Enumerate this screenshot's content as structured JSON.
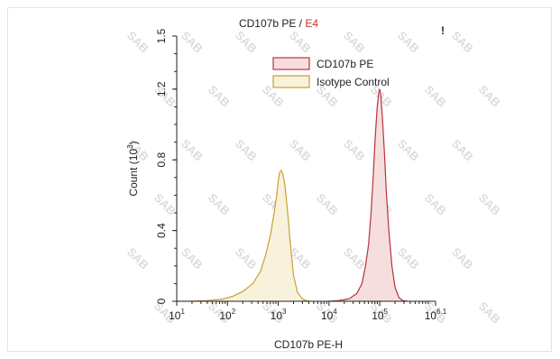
{
  "chart_data": {
    "type": "area",
    "title_main": "CD107b PE / ",
    "title_accent": "E4",
    "title_accent_color": "#c0392b",
    "corner_mark": "!",
    "xlabel": "CD107b PE-H",
    "ylabel_main": "Count (10",
    "ylabel_exp": "3",
    "ylabel_end": ")",
    "x_scale": "log10",
    "xlim": [
      1,
      6.1
    ],
    "ylim": [
      0,
      1.5
    ],
    "x_ticks": [
      {
        "base": "10",
        "exp": "1",
        "value": 1
      },
      {
        "base": "10",
        "exp": "2",
        "value": 2
      },
      {
        "base": "10",
        "exp": "3",
        "value": 3
      },
      {
        "base": "10",
        "exp": "4",
        "value": 4
      },
      {
        "base": "10",
        "exp": "5",
        "value": 5
      },
      {
        "base": "10",
        "exp": "6.1",
        "value": 6.1
      }
    ],
    "y_ticks": [
      {
        "label": "0",
        "value": 0
      },
      {
        "label": "0.4",
        "value": 0.4
      },
      {
        "label": "0.8",
        "value": 0.8
      },
      {
        "label": "1.2",
        "value": 1.2
      },
      {
        "label": "1.5",
        "value": 1.5
      }
    ],
    "legend_position": "top-right",
    "watermark": "SAB",
    "series": [
      {
        "name": "CD107b PE",
        "stroke": "#b5353f",
        "fill": "#f6dede",
        "points": [
          [
            4.0,
            0
          ],
          [
            4.2,
            0.004
          ],
          [
            4.4,
            0.015
          ],
          [
            4.55,
            0.045
          ],
          [
            4.65,
            0.1
          ],
          [
            4.72,
            0.2
          ],
          [
            4.78,
            0.32
          ],
          [
            4.83,
            0.5
          ],
          [
            4.87,
            0.7
          ],
          [
            4.91,
            0.92
          ],
          [
            4.95,
            1.1
          ],
          [
            4.98,
            1.18
          ],
          [
            5.0,
            1.2
          ],
          [
            5.02,
            1.17
          ],
          [
            5.05,
            1.05
          ],
          [
            5.09,
            0.85
          ],
          [
            5.13,
            0.62
          ],
          [
            5.18,
            0.4
          ],
          [
            5.24,
            0.2
          ],
          [
            5.3,
            0.08
          ],
          [
            5.38,
            0.02
          ],
          [
            5.46,
            0.003
          ],
          [
            5.55,
            0
          ]
        ]
      },
      {
        "name": "Isotype Control",
        "stroke": "#c9a032",
        "fill": "#f8f1dc",
        "points": [
          [
            1.0,
            0
          ],
          [
            1.3,
            0.001
          ],
          [
            1.6,
            0.004
          ],
          [
            1.9,
            0.012
          ],
          [
            2.1,
            0.028
          ],
          [
            2.3,
            0.055
          ],
          [
            2.5,
            0.1
          ],
          [
            2.65,
            0.17
          ],
          [
            2.75,
            0.26
          ],
          [
            2.85,
            0.38
          ],
          [
            2.92,
            0.5
          ],
          [
            2.97,
            0.6
          ],
          [
            3.0,
            0.68
          ],
          [
            3.03,
            0.73
          ],
          [
            3.06,
            0.74
          ],
          [
            3.09,
            0.72
          ],
          [
            3.13,
            0.66
          ],
          [
            3.18,
            0.52
          ],
          [
            3.24,
            0.32
          ],
          [
            3.3,
            0.15
          ],
          [
            3.38,
            0.05
          ],
          [
            3.48,
            0.012
          ],
          [
            3.6,
            0
          ]
        ]
      }
    ]
  }
}
